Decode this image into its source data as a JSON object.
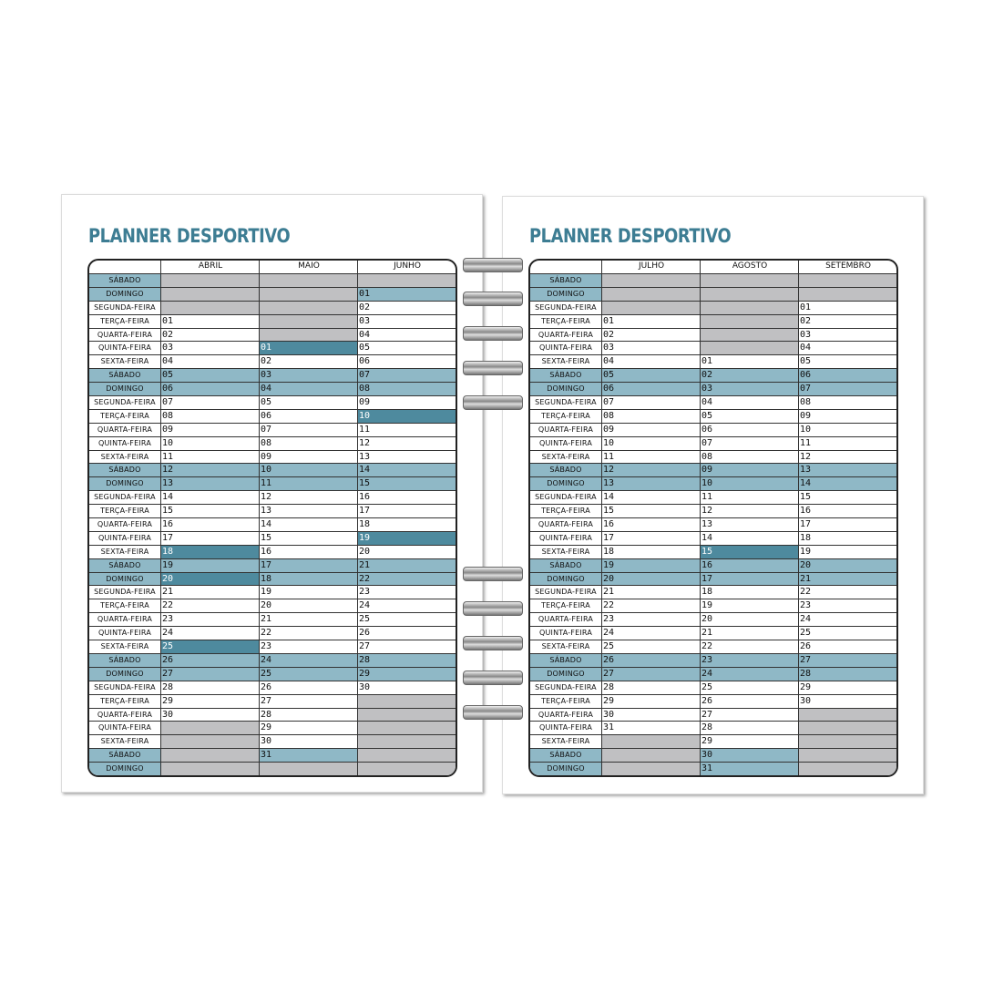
{
  "pages": [
    {
      "title": "PLANNER DESPORTIVO",
      "months": [
        {
          "name": "ABRIL",
          "cells": [
            "",
            "",
            "",
            "01",
            "02",
            "03",
            "04",
            "05",
            "06",
            "07",
            "08",
            "09",
            "10",
            "11",
            "12",
            "13",
            "14",
            "15",
            "16",
            "17",
            "18",
            "19",
            "20",
            "21",
            "22",
            "23",
            "24",
            "25",
            "26",
            "27",
            "28",
            "29",
            "30",
            "",
            "",
            "",
            ""
          ],
          "highlight": [
            "18",
            "20",
            "25"
          ]
        },
        {
          "name": "MAIO",
          "cells": [
            "",
            "",
            "",
            "",
            "",
            "01",
            "02",
            "03",
            "04",
            "05",
            "06",
            "07",
            "08",
            "09",
            "10",
            "11",
            "12",
            "13",
            "14",
            "15",
            "16",
            "17",
            "18",
            "19",
            "20",
            "21",
            "22",
            "23",
            "24",
            "25",
            "26",
            "27",
            "28",
            "29",
            "30",
            "31",
            ""
          ],
          "highlight": [
            "01"
          ]
        },
        {
          "name": "JUNHO",
          "cells": [
            "",
            "01",
            "02",
            "03",
            "04",
            "05",
            "06",
            "07",
            "08",
            "09",
            "10",
            "11",
            "12",
            "13",
            "14",
            "15",
            "16",
            "17",
            "18",
            "19",
            "20",
            "21",
            "22",
            "23",
            "24",
            "25",
            "26",
            "27",
            "28",
            "29",
            "30",
            "",
            "",
            "",
            "",
            "",
            ""
          ],
          "highlight": [
            "10",
            "19"
          ]
        }
      ]
    },
    {
      "title": "PLANNER DESPORTIVO",
      "months": [
        {
          "name": "JULHO",
          "cells": [
            "",
            "",
            "",
            "01",
            "02",
            "03",
            "04",
            "05",
            "06",
            "07",
            "08",
            "09",
            "10",
            "11",
            "12",
            "13",
            "14",
            "15",
            "16",
            "17",
            "18",
            "19",
            "20",
            "21",
            "22",
            "23",
            "24",
            "25",
            "26",
            "27",
            "28",
            "29",
            "30",
            "31",
            "",
            "",
            ""
          ],
          "highlight": []
        },
        {
          "name": "AGOSTO",
          "cells": [
            "",
            "",
            "",
            "",
            "",
            "",
            "01",
            "02",
            "03",
            "04",
            "05",
            "06",
            "07",
            "08",
            "09",
            "10",
            "11",
            "12",
            "13",
            "14",
            "15",
            "16",
            "17",
            "18",
            "19",
            "20",
            "21",
            "22",
            "23",
            "24",
            "25",
            "26",
            "27",
            "28",
            "29",
            "30",
            "31"
          ],
          "highlight": [
            "15"
          ]
        },
        {
          "name": "SETEMBRO",
          "cells": [
            "",
            "",
            "01",
            "02",
            "03",
            "04",
            "05",
            "06",
            "07",
            "08",
            "09",
            "10",
            "11",
            "12",
            "13",
            "14",
            "15",
            "16",
            "17",
            "18",
            "19",
            "20",
            "21",
            "22",
            "23",
            "24",
            "25",
            "26",
            "27",
            "28",
            "29",
            "30",
            "",
            "",
            "",
            "",
            ""
          ],
          "highlight": []
        }
      ]
    }
  ],
  "weekdays": [
    "SÁBADO",
    "DOMINGO",
    "SEGUNDA-FEIRA",
    "TERÇA-FEIRA",
    "QUARTA-FEIRA",
    "QUINTA-FEIRA",
    "SEXTA-FEIRA"
  ],
  "colors": {
    "title": "#3d7d93",
    "weekend": "#8fb8c6",
    "highlight": "#4e8a9e",
    "empty": "#c0c0c2"
  }
}
